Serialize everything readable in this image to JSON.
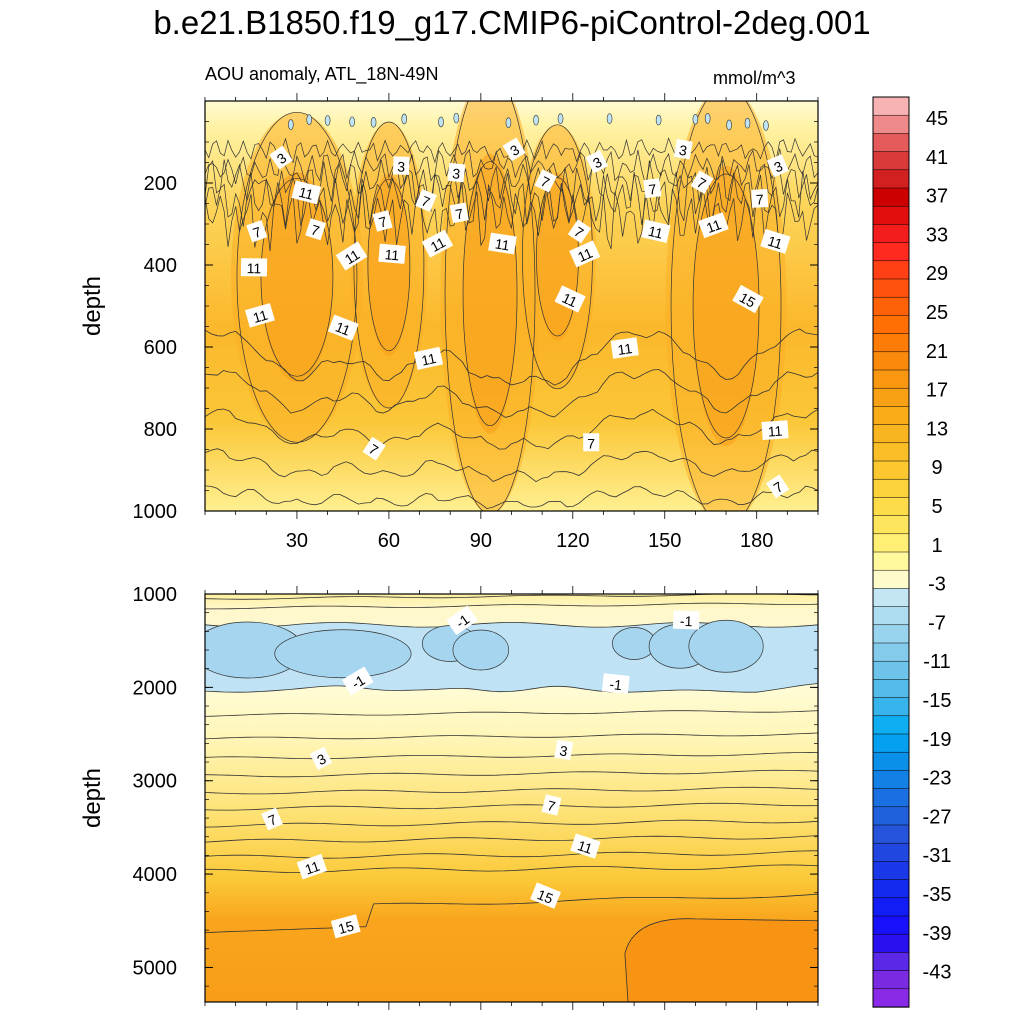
{
  "title": "b.e21.B1850.f19_g17.CMIP6-piControl-2deg.001",
  "subtitle": "AOU anomaly, ATL_18N-49N",
  "units": "mmol/m^3",
  "colors": {
    "shallow": "#fbc62e",
    "deep": "#f8a01a",
    "deep_core": "#f79414",
    "blue_layer": "#bfe3f4",
    "blue_core": "#a6d6ef",
    "pale": "#fff6c0",
    "line": "#333333"
  },
  "chart_data": [
    {
      "type": "contour",
      "panel": "upper",
      "xlabel": "",
      "ylabel": "depth",
      "xlim": [
        0,
        200
      ],
      "ylim": [
        0,
        1000
      ],
      "y_inverted": true,
      "xticks": [
        30,
        60,
        90,
        120,
        150,
        180
      ],
      "xtick_labels": [
        "30",
        "60",
        "90",
        "120",
        "150",
        "180"
      ],
      "yticks": [
        200,
        400,
        600,
        800,
        1000
      ],
      "ytick_labels": [
        "200",
        "400",
        "600",
        "800",
        "1000"
      ],
      "contour_labels": [
        {
          "x": 25,
          "y": 140,
          "text": "3"
        },
        {
          "x": 64,
          "y": 160,
          "text": "3"
        },
        {
          "x": 101,
          "y": 120,
          "text": "3"
        },
        {
          "x": 82,
          "y": 177,
          "text": "3"
        },
        {
          "x": 128,
          "y": 150,
          "text": "3"
        },
        {
          "x": 156,
          "y": 120,
          "text": "3"
        },
        {
          "x": 187,
          "y": 160,
          "text": "3"
        },
        {
          "x": 33,
          "y": 225,
          "text": "11"
        },
        {
          "x": 17,
          "y": 320,
          "text": "7"
        },
        {
          "x": 36,
          "y": 315,
          "text": "7"
        },
        {
          "x": 58,
          "y": 295,
          "text": "7"
        },
        {
          "x": 72,
          "y": 245,
          "text": "7"
        },
        {
          "x": 83,
          "y": 275,
          "text": "7"
        },
        {
          "x": 111,
          "y": 197,
          "text": "7"
        },
        {
          "x": 146,
          "y": 215,
          "text": "7"
        },
        {
          "x": 162,
          "y": 200,
          "text": "7"
        },
        {
          "x": 181,
          "y": 240,
          "text": "7"
        },
        {
          "x": 122,
          "y": 320,
          "text": "7"
        },
        {
          "x": 16,
          "y": 408,
          "text": "11"
        },
        {
          "x": 48,
          "y": 380,
          "text": "11"
        },
        {
          "x": 61,
          "y": 375,
          "text": "11"
        },
        {
          "x": 76,
          "y": 350,
          "text": "11"
        },
        {
          "x": 97,
          "y": 350,
          "text": "11"
        },
        {
          "x": 124,
          "y": 375,
          "text": "11"
        },
        {
          "x": 147,
          "y": 320,
          "text": "11"
        },
        {
          "x": 166,
          "y": 305,
          "text": "11"
        },
        {
          "x": 186,
          "y": 345,
          "text": "11"
        },
        {
          "x": 18,
          "y": 525,
          "text": "11"
        },
        {
          "x": 45,
          "y": 555,
          "text": "11"
        },
        {
          "x": 73,
          "y": 630,
          "text": "11"
        },
        {
          "x": 119,
          "y": 485,
          "text": "11"
        },
        {
          "x": 137,
          "y": 605,
          "text": "11"
        },
        {
          "x": 177,
          "y": 485,
          "text": "15"
        },
        {
          "x": 186,
          "y": 805,
          "text": "11"
        },
        {
          "x": 55,
          "y": 850,
          "text": "7"
        },
        {
          "x": 126,
          "y": 835,
          "text": "7"
        },
        {
          "x": 187,
          "y": 942,
          "text": "7"
        }
      ]
    },
    {
      "type": "contour",
      "panel": "lower",
      "xlabel": "",
      "ylabel": "depth",
      "xlim": [
        0,
        200
      ],
      "ylim": [
        1000,
        5370
      ],
      "y_inverted": true,
      "yticks": [
        1000,
        2000,
        3000,
        4000,
        5000
      ],
      "ytick_labels": [
        "1000",
        "2000",
        "3000",
        "4000",
        "5000"
      ],
      "contour_labels": [
        {
          "x": 84,
          "y": 1290,
          "text": "-1"
        },
        {
          "x": 157,
          "y": 1290,
          "text": "-1"
        },
        {
          "x": 50,
          "y": 1940,
          "text": "-1"
        },
        {
          "x": 134,
          "y": 1970,
          "text": "-1"
        },
        {
          "x": 38,
          "y": 2770,
          "text": "3"
        },
        {
          "x": 117,
          "y": 2680,
          "text": "3"
        },
        {
          "x": 22,
          "y": 3420,
          "text": "7"
        },
        {
          "x": 113,
          "y": 3270,
          "text": "7"
        },
        {
          "x": 35,
          "y": 3930,
          "text": "11"
        },
        {
          "x": 124,
          "y": 3710,
          "text": "11"
        },
        {
          "x": 46,
          "y": 4570,
          "text": "15"
        },
        {
          "x": 111,
          "y": 4240,
          "text": "15"
        }
      ]
    }
  ],
  "colorbar": {
    "labels": [
      "45",
      "41",
      "37",
      "33",
      "29",
      "25",
      "21",
      "17",
      "13",
      "9",
      "5",
      "1",
      "-3",
      "-7",
      "-11",
      "-15",
      "-19",
      "-23",
      "-27",
      "-31",
      "-35",
      "-39",
      "-43"
    ],
    "colors": [
      "#f7b3b3",
      "#ef8a8a",
      "#e55b5b",
      "#d93939",
      "#d21f1f",
      "#cc0000",
      "#e20e0e",
      "#f41d1d",
      "#ff2a1f",
      "#ff3f14",
      "#ff520e",
      "#ff6108",
      "#ff6f04",
      "#fd7c08",
      "#fb8a0c",
      "#fa9710",
      "#f9a114",
      "#f9ab18",
      "#f9b51f",
      "#fabf27",
      "#fbc92f",
      "#fcd23a",
      "#fddc4a",
      "#fee55e",
      "#fff075",
      "#fff89c",
      "#fffccb",
      "#c3e5f4",
      "#aedcf1",
      "#99d4ee",
      "#84cbeb",
      "#6dc3ea",
      "#55bbea",
      "#37b4ec",
      "#0fadf2",
      "#06a0f0",
      "#0b90ea",
      "#1280e5",
      "#1a70e0",
      "#2060dc",
      "#2553d9",
      "#2147e0",
      "#1a38e8",
      "#152aef",
      "#121df6",
      "#1710f8",
      "#2a10f0",
      "#5a28e6",
      "#7a2ae0",
      "#8a2ae8"
    ]
  }
}
